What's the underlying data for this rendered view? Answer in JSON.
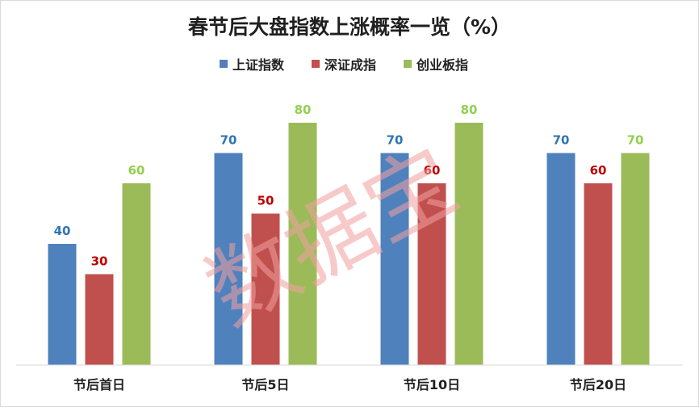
{
  "watermark": "数据宝",
  "chart_data": {
    "type": "bar",
    "title": "春节后大盘指数上涨概率一览（%）",
    "categories": [
      "节后首日",
      "节后5日",
      "节后10日",
      "节后20日"
    ],
    "series": [
      {
        "name": "上证指数",
        "values": [
          40,
          70,
          70,
          70
        ],
        "color": "#4f81bd",
        "label_color": "#2e75b6"
      },
      {
        "name": "深证成指",
        "values": [
          30,
          50,
          60,
          60
        ],
        "color": "#c0504d",
        "label_color": "#c00000"
      },
      {
        "name": "创业板指",
        "values": [
          60,
          80,
          80,
          70
        ],
        "color": "#9bbb59",
        "label_color": "#92d050"
      }
    ],
    "ylim": [
      0,
      100
    ],
    "grid": false,
    "legend_position": "top"
  }
}
